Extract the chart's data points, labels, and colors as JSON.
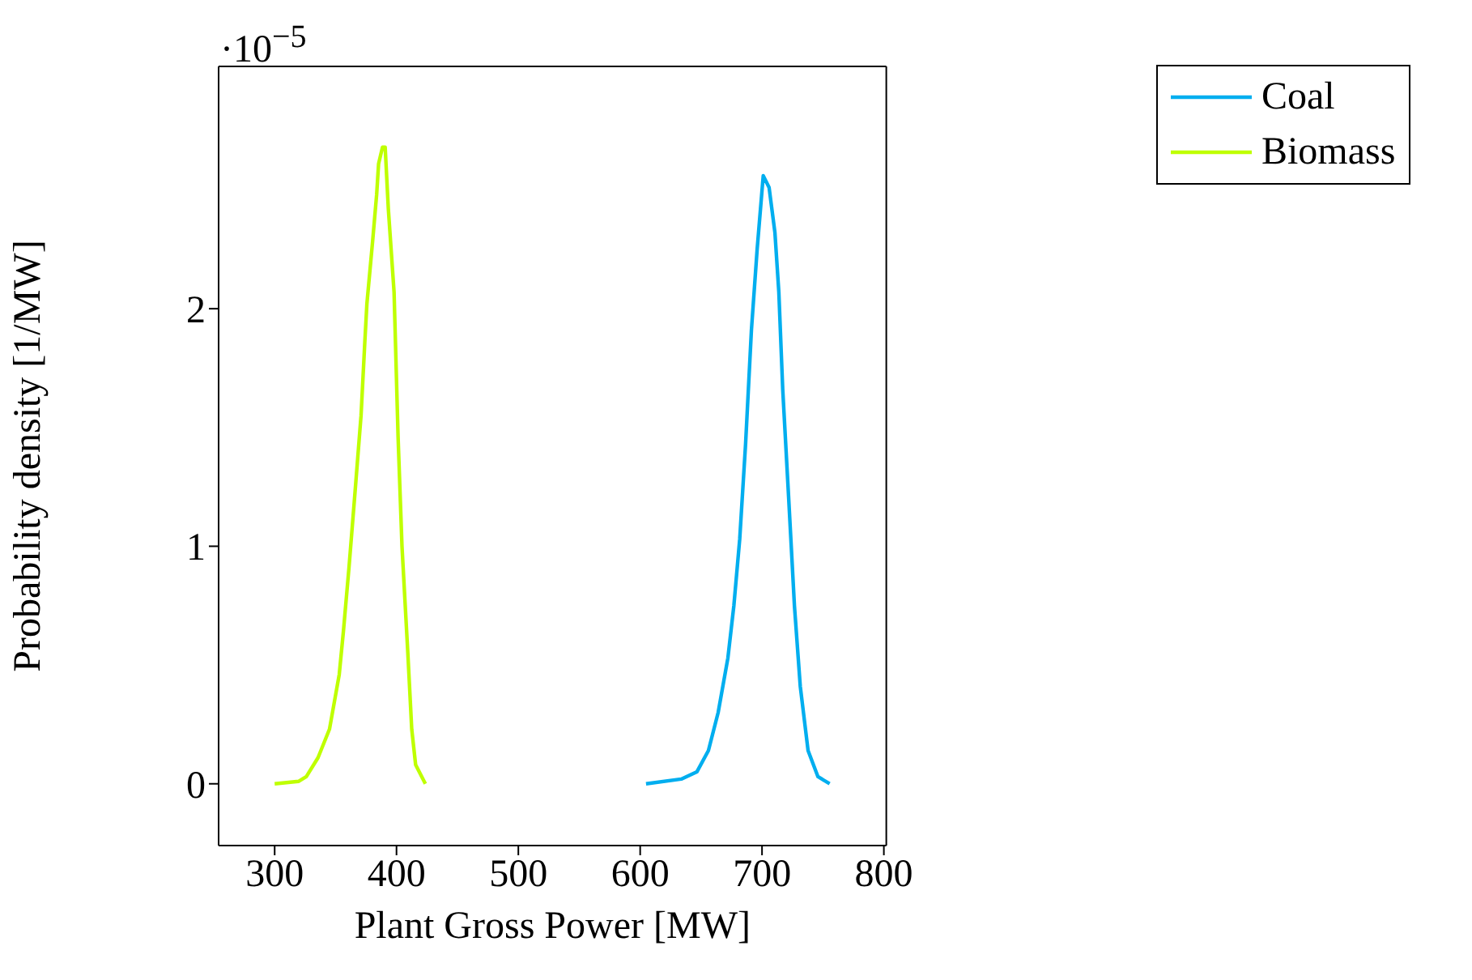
{
  "chart_data": {
    "type": "line",
    "xlabel": "Plant Gross Power [MW]",
    "ylabel": "Probability density [1/MW]",
    "annotations": [
      "·10$^{−5}$"
    ],
    "xlim": [
      254,
      802
    ],
    "xticks": [
      300,
      400,
      500,
      600,
      700,
      800
    ],
    "ylim": [
      -0.26,
      3.02
    ],
    "yticks": [
      0,
      1,
      2
    ],
    "legend": "top right",
    "marker": "none",
    "line_style": "solid",
    "series": [
      {
        "name": "Coal",
        "color": "#00aeef",
        "x": [
          604.8,
          633.7,
          646.5,
          656,
          664,
          672,
          676.9,
          681.7,
          686.5,
          691.3,
          696,
          701,
          705.8,
          710.6,
          713.8,
          717,
          721.8,
          726.6,
          731.4,
          737.8,
          745.9,
          755.5
        ],
        "values": [
          0,
          0.02,
          0.05,
          0.14,
          0.3,
          0.53,
          0.75,
          1.03,
          1.43,
          1.91,
          2.25,
          2.56,
          2.51,
          2.32,
          2.07,
          1.66,
          1.21,
          0.75,
          0.41,
          0.14,
          0.03,
          0
        ]
      },
      {
        "name": "Biomass",
        "color": "#bfff00",
        "x": [
          300,
          319.5,
          326,
          335.6,
          345,
          353,
          356.4,
          361,
          366,
          370.9,
          374,
          375.7,
          380.5,
          383.7,
          385.3,
          388.5,
          390.7,
          393.3,
          398,
          401.3,
          404.5,
          409.3,
          412.5,
          415.7,
          423.7
        ],
        "values": [
          0,
          0.01,
          0.03,
          0.11,
          0.23,
          0.46,
          0.64,
          0.91,
          1.23,
          1.55,
          1.86,
          2.02,
          2.29,
          2.48,
          2.61,
          2.68,
          2.68,
          2.42,
          2.07,
          1.46,
          1,
          0.55,
          0.23,
          0.08,
          0
        ]
      }
    ]
  }
}
